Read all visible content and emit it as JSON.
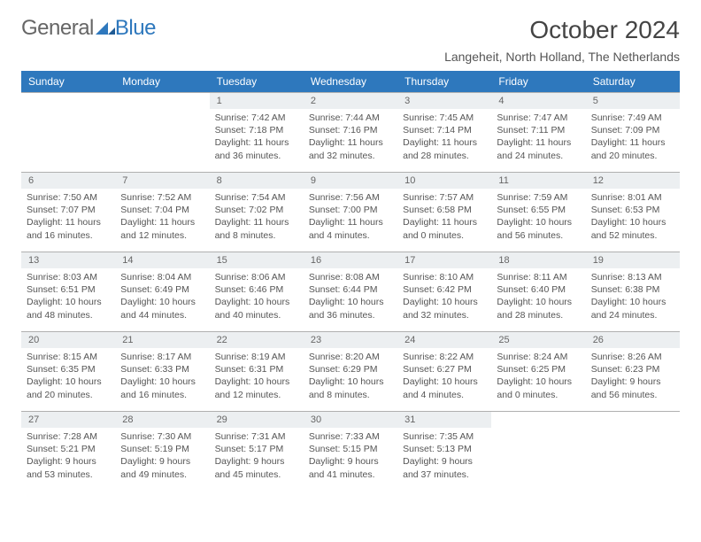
{
  "logo": {
    "text1": "General",
    "text2": "Blue",
    "color1": "#666666",
    "color2": "#2e78bd"
  },
  "title": "October 2024",
  "subtitle": "Langeheit, North Holland, The Netherlands",
  "theme": {
    "header_bg": "#2e78bd",
    "header_fg": "#ffffff",
    "daynum_bg": "#eceff1",
    "border": "#b0b0b0"
  },
  "weekdays": [
    "Sunday",
    "Monday",
    "Tuesday",
    "Wednesday",
    "Thursday",
    "Friday",
    "Saturday"
  ],
  "weeks": [
    [
      null,
      null,
      {
        "n": "1",
        "sr": "7:42 AM",
        "ss": "7:18 PM",
        "dl": "11 hours and 36 minutes."
      },
      {
        "n": "2",
        "sr": "7:44 AM",
        "ss": "7:16 PM",
        "dl": "11 hours and 32 minutes."
      },
      {
        "n": "3",
        "sr": "7:45 AM",
        "ss": "7:14 PM",
        "dl": "11 hours and 28 minutes."
      },
      {
        "n": "4",
        "sr": "7:47 AM",
        "ss": "7:11 PM",
        "dl": "11 hours and 24 minutes."
      },
      {
        "n": "5",
        "sr": "7:49 AM",
        "ss": "7:09 PM",
        "dl": "11 hours and 20 minutes."
      }
    ],
    [
      {
        "n": "6",
        "sr": "7:50 AM",
        "ss": "7:07 PM",
        "dl": "11 hours and 16 minutes."
      },
      {
        "n": "7",
        "sr": "7:52 AM",
        "ss": "7:04 PM",
        "dl": "11 hours and 12 minutes."
      },
      {
        "n": "8",
        "sr": "7:54 AM",
        "ss": "7:02 PM",
        "dl": "11 hours and 8 minutes."
      },
      {
        "n": "9",
        "sr": "7:56 AM",
        "ss": "7:00 PM",
        "dl": "11 hours and 4 minutes."
      },
      {
        "n": "10",
        "sr": "7:57 AM",
        "ss": "6:58 PM",
        "dl": "11 hours and 0 minutes."
      },
      {
        "n": "11",
        "sr": "7:59 AM",
        "ss": "6:55 PM",
        "dl": "10 hours and 56 minutes."
      },
      {
        "n": "12",
        "sr": "8:01 AM",
        "ss": "6:53 PM",
        "dl": "10 hours and 52 minutes."
      }
    ],
    [
      {
        "n": "13",
        "sr": "8:03 AM",
        "ss": "6:51 PM",
        "dl": "10 hours and 48 minutes."
      },
      {
        "n": "14",
        "sr": "8:04 AM",
        "ss": "6:49 PM",
        "dl": "10 hours and 44 minutes."
      },
      {
        "n": "15",
        "sr": "8:06 AM",
        "ss": "6:46 PM",
        "dl": "10 hours and 40 minutes."
      },
      {
        "n": "16",
        "sr": "8:08 AM",
        "ss": "6:44 PM",
        "dl": "10 hours and 36 minutes."
      },
      {
        "n": "17",
        "sr": "8:10 AM",
        "ss": "6:42 PM",
        "dl": "10 hours and 32 minutes."
      },
      {
        "n": "18",
        "sr": "8:11 AM",
        "ss": "6:40 PM",
        "dl": "10 hours and 28 minutes."
      },
      {
        "n": "19",
        "sr": "8:13 AM",
        "ss": "6:38 PM",
        "dl": "10 hours and 24 minutes."
      }
    ],
    [
      {
        "n": "20",
        "sr": "8:15 AM",
        "ss": "6:35 PM",
        "dl": "10 hours and 20 minutes."
      },
      {
        "n": "21",
        "sr": "8:17 AM",
        "ss": "6:33 PM",
        "dl": "10 hours and 16 minutes."
      },
      {
        "n": "22",
        "sr": "8:19 AM",
        "ss": "6:31 PM",
        "dl": "10 hours and 12 minutes."
      },
      {
        "n": "23",
        "sr": "8:20 AM",
        "ss": "6:29 PM",
        "dl": "10 hours and 8 minutes."
      },
      {
        "n": "24",
        "sr": "8:22 AM",
        "ss": "6:27 PM",
        "dl": "10 hours and 4 minutes."
      },
      {
        "n": "25",
        "sr": "8:24 AM",
        "ss": "6:25 PM",
        "dl": "10 hours and 0 minutes."
      },
      {
        "n": "26",
        "sr": "8:26 AM",
        "ss": "6:23 PM",
        "dl": "9 hours and 56 minutes."
      }
    ],
    [
      {
        "n": "27",
        "sr": "7:28 AM",
        "ss": "5:21 PM",
        "dl": "9 hours and 53 minutes."
      },
      {
        "n": "28",
        "sr": "7:30 AM",
        "ss": "5:19 PM",
        "dl": "9 hours and 49 minutes."
      },
      {
        "n": "29",
        "sr": "7:31 AM",
        "ss": "5:17 PM",
        "dl": "9 hours and 45 minutes."
      },
      {
        "n": "30",
        "sr": "7:33 AM",
        "ss": "5:15 PM",
        "dl": "9 hours and 41 minutes."
      },
      {
        "n": "31",
        "sr": "7:35 AM",
        "ss": "5:13 PM",
        "dl": "9 hours and 37 minutes."
      },
      null,
      null
    ]
  ],
  "labels": {
    "sunrise": "Sunrise:",
    "sunset": "Sunset:",
    "daylight": "Daylight:"
  }
}
